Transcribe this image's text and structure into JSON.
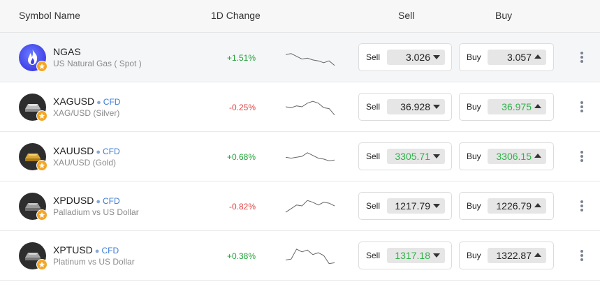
{
  "header": {
    "symbol_name": "Symbol Name",
    "change": "1D Change",
    "sell": "Sell",
    "buy": "Buy"
  },
  "rows": [
    {
      "symbol": "NGAS",
      "cfd": "",
      "name": "US Natural Gas ( Spot )",
      "change": "+1.51%",
      "direction": "up",
      "sell_label": "Sell",
      "sell_value": "3.026",
      "buy_label": "Buy",
      "buy_value": "3.057",
      "icon": "flame-icon",
      "spark": [
        0.35,
        0.3,
        0.45,
        0.6,
        0.55,
        0.65,
        0.7,
        0.8,
        0.7,
        0.95
      ]
    },
    {
      "symbol": "XAGUSD",
      "cfd": "CFD",
      "name": "XAG/USD (Silver)",
      "change": "-0.25%",
      "direction": "down",
      "sell_label": "Sell",
      "sell_value": "36.928",
      "buy_label": "Buy",
      "buy_value": "36.975",
      "icon": "silver-bar-icon",
      "spark": [
        0.5,
        0.55,
        0.45,
        0.5,
        0.3,
        0.2,
        0.3,
        0.55,
        0.6,
        0.95
      ]
    },
    {
      "symbol": "XAUUSD",
      "cfd": "CFD",
      "name": "XAU/USD (Gold)",
      "change": "+0.68%",
      "direction": "up",
      "sell_label": "Sell",
      "sell_value": "3305.71",
      "buy_label": "Buy",
      "buy_value": "3306.15",
      "icon": "gold-bar-icon",
      "spark": [
        0.55,
        0.6,
        0.55,
        0.5,
        0.3,
        0.45,
        0.6,
        0.65,
        0.75,
        0.7
      ]
    },
    {
      "symbol": "XPDUSD",
      "cfd": "CFD",
      "name": "Palladium vs US Dollar",
      "change": "-0.82%",
      "direction": "down",
      "sell_label": "Sell",
      "sell_value": "1217.79",
      "buy_label": "Buy",
      "buy_value": "1226.79",
      "icon": "palladium-bar-icon",
      "spark": [
        0.85,
        0.65,
        0.45,
        0.5,
        0.2,
        0.3,
        0.45,
        0.3,
        0.35,
        0.5
      ]
    },
    {
      "symbol": "XPTUSD",
      "cfd": "CFD",
      "name": "Platinum vs US Dollar",
      "change": "+0.38%",
      "direction": "up",
      "sell_label": "Sell",
      "sell_value": "1317.18",
      "buy_label": "Buy",
      "buy_value": "1322.87",
      "icon": "platinum-bar-icon",
      "spark": [
        0.75,
        0.7,
        0.15,
        0.3,
        0.2,
        0.45,
        0.35,
        0.5,
        0.95,
        0.9
      ]
    }
  ],
  "colors": {
    "up": "#23a23a",
    "down": "#e04444",
    "green_price": "#2fb24a",
    "star": "#f5a623",
    "cfd": "#3a7bd5"
  }
}
